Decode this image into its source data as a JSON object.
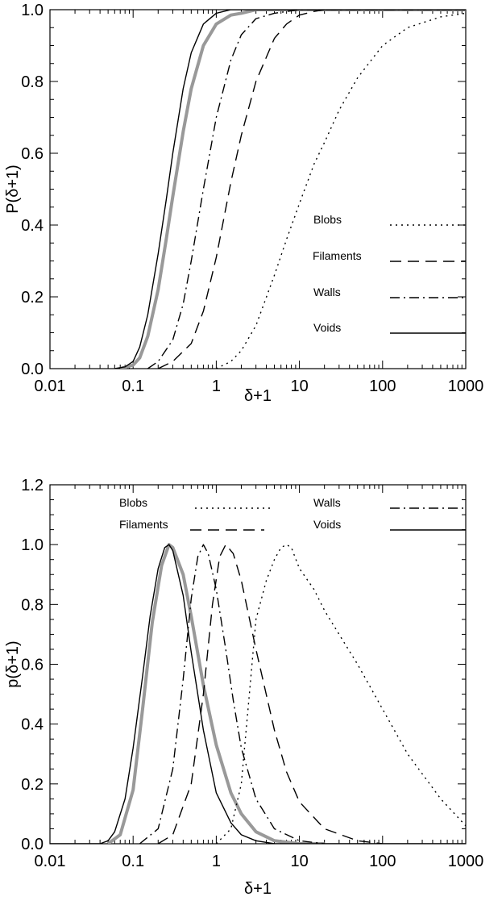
{
  "chart_data": [
    {
      "type": "line",
      "xscale": "log",
      "xlabel": "δ+1",
      "ylabel": "P(δ+1)",
      "xlim": [
        0.01,
        1000
      ],
      "ylim": [
        0.0,
        1.0
      ],
      "xticks": [
        "0.01",
        "0.1",
        "1",
        "10",
        "100",
        "1000"
      ],
      "yticks": [
        "0.0",
        "0.2",
        "0.4",
        "0.6",
        "0.8",
        "1.0"
      ],
      "legend_placement": "right",
      "series": [
        {
          "name": "Blobs",
          "style": "dotted",
          "color": "#000000",
          "x": [
            1,
            1.5,
            2,
            3,
            5,
            7,
            10,
            15,
            20,
            30,
            50,
            100,
            200,
            500,
            1000
          ],
          "y": [
            0.0,
            0.02,
            0.05,
            0.12,
            0.26,
            0.36,
            0.46,
            0.57,
            0.63,
            0.72,
            0.81,
            0.9,
            0.95,
            0.98,
            0.99
          ]
        },
        {
          "name": "Filaments",
          "style": "dashed",
          "color": "#000000",
          "x": [
            0.2,
            0.3,
            0.5,
            0.7,
            1,
            1.5,
            2,
            3,
            5,
            7,
            10,
            15,
            20,
            50,
            100,
            1000
          ],
          "y": [
            0.0,
            0.02,
            0.07,
            0.16,
            0.31,
            0.52,
            0.65,
            0.8,
            0.92,
            0.96,
            0.985,
            0.995,
            1.0,
            1.0,
            1.0,
            1.0
          ]
        },
        {
          "name": "Walls",
          "style": "dashdot",
          "color": "#000000",
          "x": [
            0.15,
            0.2,
            0.3,
            0.4,
            0.5,
            0.7,
            1,
            1.5,
            2,
            3,
            5,
            10,
            100,
            1000
          ],
          "y": [
            0.0,
            0.02,
            0.08,
            0.18,
            0.3,
            0.5,
            0.7,
            0.86,
            0.93,
            0.975,
            0.99,
            1.0,
            1.0,
            1.0
          ]
        },
        {
          "name": "Voids",
          "style": "solid",
          "color": "#000000",
          "x": [
            0.06,
            0.08,
            0.1,
            0.12,
            0.15,
            0.2,
            0.25,
            0.3,
            0.4,
            0.5,
            0.7,
            1,
            1.5,
            2,
            3,
            10,
            1000
          ],
          "y": [
            0.0,
            0.005,
            0.02,
            0.06,
            0.15,
            0.32,
            0.47,
            0.6,
            0.78,
            0.88,
            0.96,
            0.99,
            1.0,
            1.0,
            1.0,
            1.0,
            1.0
          ]
        },
        {
          "style": "solid-thick",
          "color": "#999999",
          "x": [
            0.07,
            0.1,
            0.12,
            0.15,
            0.2,
            0.25,
            0.3,
            0.4,
            0.5,
            0.7,
            1,
            1.5,
            2,
            3,
            5,
            10,
            1000
          ],
          "y": [
            0.0,
            0.01,
            0.03,
            0.09,
            0.22,
            0.36,
            0.48,
            0.66,
            0.78,
            0.9,
            0.96,
            0.985,
            0.99,
            1.0,
            1.0,
            1.0,
            1.0
          ]
        }
      ]
    },
    {
      "type": "line",
      "xscale": "log",
      "xlabel": "δ+1",
      "ylabel": "p(δ+1)",
      "xlim": [
        0.01,
        1000
      ],
      "ylim": [
        0.0,
        1.2
      ],
      "xticks": [
        "0.01",
        "0.1",
        "1",
        "10",
        "100",
        "1000"
      ],
      "yticks": [
        "0.0",
        "0.2",
        "0.4",
        "0.6",
        "0.8",
        "1.0",
        "1.2"
      ],
      "legend_placement": "top",
      "series": [
        {
          "name": "Blobs",
          "style": "dotted",
          "color": "#000000",
          "x": [
            1,
            1.5,
            2,
            2.5,
            3,
            4,
            5,
            6,
            7,
            8,
            10,
            15,
            20,
            30,
            50,
            100,
            200,
            500,
            1000
          ],
          "y": [
            0.0,
            0.05,
            0.2,
            0.5,
            0.75,
            0.88,
            0.95,
            0.99,
            1.0,
            0.99,
            0.92,
            0.85,
            0.78,
            0.7,
            0.6,
            0.45,
            0.3,
            0.15,
            0.06
          ]
        },
        {
          "name": "Filaments",
          "style": "dashed",
          "color": "#000000",
          "x": [
            0.2,
            0.3,
            0.5,
            0.7,
            0.9,
            1.1,
            1.3,
            1.6,
            2,
            3,
            5,
            7,
            10,
            20,
            50,
            100
          ],
          "y": [
            0.0,
            0.03,
            0.2,
            0.5,
            0.8,
            0.96,
            1.0,
            0.97,
            0.88,
            0.65,
            0.38,
            0.24,
            0.14,
            0.05,
            0.01,
            0.0
          ]
        },
        {
          "name": "Walls",
          "style": "dashdot",
          "color": "#000000",
          "x": [
            0.12,
            0.2,
            0.3,
            0.4,
            0.5,
            0.6,
            0.7,
            0.8,
            1,
            1.3,
            1.6,
            2,
            3,
            5,
            10,
            20
          ],
          "y": [
            0.0,
            0.05,
            0.25,
            0.55,
            0.82,
            0.96,
            1.0,
            0.97,
            0.85,
            0.65,
            0.48,
            0.32,
            0.15,
            0.05,
            0.01,
            0.0
          ]
        },
        {
          "name": "Voids",
          "style": "solid",
          "color": "#000000",
          "x": [
            0.01,
            0.04,
            0.05,
            0.06,
            0.08,
            0.1,
            0.13,
            0.16,
            0.2,
            0.24,
            0.27,
            0.3,
            0.4,
            0.5,
            0.7,
            1,
            1.5,
            2,
            3,
            5,
            10,
            1000
          ],
          "y": [
            0.0,
            0.0,
            0.01,
            0.04,
            0.15,
            0.32,
            0.56,
            0.76,
            0.92,
            0.99,
            1.0,
            0.98,
            0.83,
            0.64,
            0.38,
            0.17,
            0.07,
            0.03,
            0.01,
            0.0,
            0.0,
            0.0
          ]
        },
        {
          "style": "solid-thick",
          "color": "#999999",
          "x": [
            0.05,
            0.07,
            0.1,
            0.13,
            0.17,
            0.22,
            0.27,
            0.3,
            0.4,
            0.5,
            0.7,
            1,
            1.5,
            2,
            3,
            5,
            10,
            20
          ],
          "y": [
            0.0,
            0.03,
            0.18,
            0.45,
            0.74,
            0.93,
            1.0,
            0.99,
            0.9,
            0.76,
            0.53,
            0.33,
            0.17,
            0.1,
            0.04,
            0.01,
            0.0,
            0.0
          ]
        }
      ]
    }
  ]
}
